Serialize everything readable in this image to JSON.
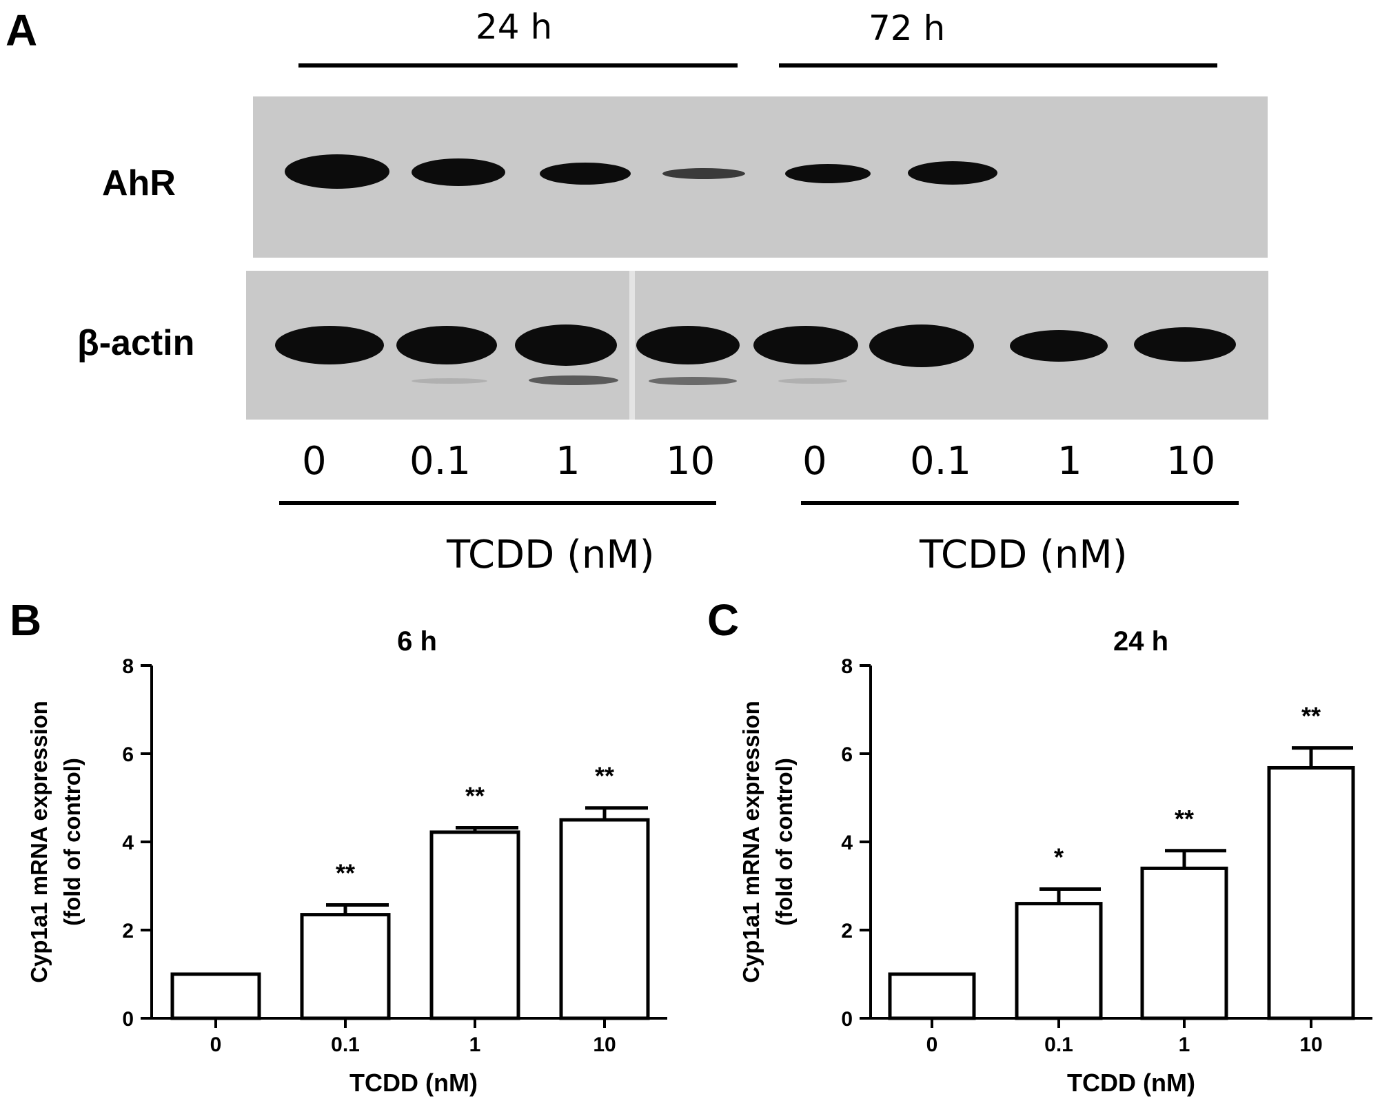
{
  "panel_a": {
    "letter": "A",
    "time_labels": [
      "24 h",
      "72 h"
    ],
    "protein_labels": [
      "AhR",
      "β-actin"
    ],
    "dose_labels": [
      "0",
      "0.1",
      "1",
      "10",
      "0",
      "0.1",
      "1",
      "10"
    ],
    "xlabel": "TCDD (nM)"
  },
  "chart_data": [
    {
      "type": "bar",
      "panel": "B",
      "title": "6 h",
      "categories": [
        "0",
        "0.1",
        "1",
        "10"
      ],
      "values": [
        1.0,
        2.35,
        4.22,
        4.5
      ],
      "errors": [
        0,
        0.22,
        0.1,
        0.27
      ],
      "significance": [
        "",
        "**",
        "**",
        "**"
      ],
      "xlabel": "TCDD (nM)",
      "ylabel_line1": "Cyp1a1 mRNA expression",
      "ylabel_line2": "(fold of control)",
      "ylim": [
        0,
        8
      ],
      "yticks": [
        "0",
        "2",
        "4",
        "6",
        "8"
      ]
    },
    {
      "type": "bar",
      "panel": "C",
      "title": "24 h",
      "categories": [
        "0",
        "0.1",
        "1",
        "10"
      ],
      "values": [
        1.0,
        2.6,
        3.4,
        5.68
      ],
      "errors": [
        0,
        0.33,
        0.4,
        0.45
      ],
      "significance": [
        "",
        "*",
        "**",
        "**"
      ],
      "xlabel": "TCDD (nM)",
      "ylabel_line1": "Cyp1a1 mRNA expression",
      "ylabel_line2": "(fold of control)",
      "ylim": [
        0,
        8
      ],
      "yticks": [
        "0",
        "2",
        "4",
        "6",
        "8"
      ]
    }
  ]
}
